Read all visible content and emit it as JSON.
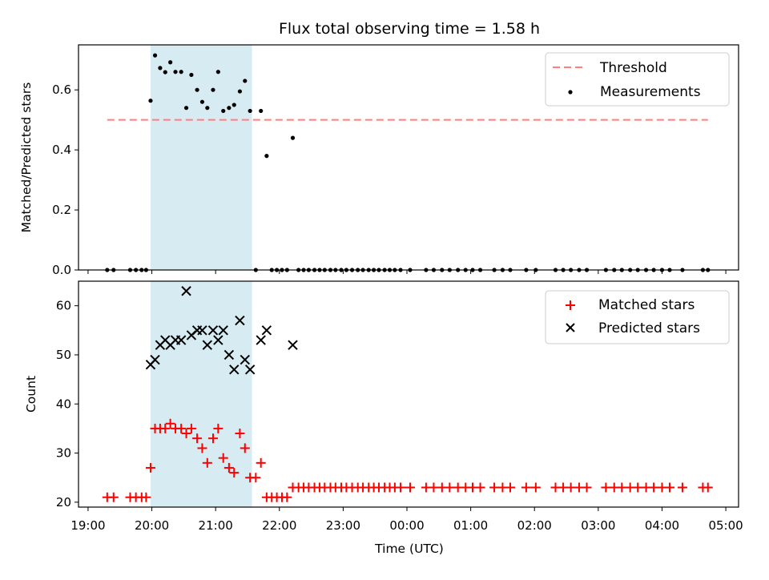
{
  "chart_data": [
    {
      "type": "scatter",
      "panel": "top",
      "title": "Flux total observing time = 1.58 h",
      "xlabel": "",
      "ylabel": "Matched/Predicted stars",
      "xlim": [
        18.85,
        29.2
      ],
      "ylim": [
        0,
        0.75
      ],
      "x_tick_values": [
        19,
        20,
        21,
        22,
        23,
        24,
        25,
        26,
        27,
        28,
        29
      ],
      "y_ticks": [
        0.0,
        0.2,
        0.4,
        0.6
      ],
      "y_tick_labels": [
        "0.0",
        "0.2",
        "0.4",
        "0.6"
      ],
      "shaded_interval": [
        19.98,
        21.57
      ],
      "threshold": {
        "label": "Threshold",
        "value": 0.5,
        "x_start": 19.3,
        "x_end": 28.72,
        "color": "#ff7f7f"
      },
      "legend": {
        "position": "top-right",
        "entries": [
          "Threshold",
          "Measurements"
        ]
      },
      "measurements": {
        "name": "Measurements",
        "color": "#000000",
        "x": [
          19.3,
          19.4,
          19.66,
          19.75,
          19.84,
          19.91,
          19.98,
          20.05,
          20.13,
          20.21,
          20.29,
          20.37,
          20.46,
          20.54,
          20.62,
          20.71,
          20.79,
          20.87,
          20.96,
          21.04,
          21.12,
          21.21,
          21.29,
          21.38,
          21.46,
          21.54,
          21.63,
          21.71,
          21.8,
          21.88,
          21.96,
          22.04,
          22.12,
          22.21,
          22.3,
          22.38,
          22.46,
          22.55,
          22.63,
          22.71,
          22.8,
          22.88,
          22.97,
          23.05,
          23.14,
          23.23,
          23.31,
          23.4,
          23.48,
          23.56,
          23.65,
          23.73,
          23.81,
          23.9,
          24.05,
          24.3,
          24.42,
          24.55,
          24.67,
          24.8,
          24.92,
          25.03,
          25.15,
          25.37,
          25.5,
          25.62,
          25.87,
          26.02,
          26.33,
          26.45,
          26.57,
          26.7,
          26.82,
          27.12,
          27.25,
          27.37,
          27.5,
          27.62,
          27.75,
          27.87,
          28.0,
          28.12,
          28.32,
          28.64,
          28.72
        ],
        "y": [
          0,
          0,
          0,
          0,
          0,
          0,
          0.564,
          0.715,
          0.673,
          0.659,
          0.692,
          0.66,
          0.66,
          0.54,
          0.65,
          0.6,
          0.56,
          0.54,
          0.6,
          0.66,
          0.53,
          0.54,
          0.55,
          0.595,
          0.63,
          0.53,
          0,
          0.53,
          0.38,
          0,
          0,
          0,
          0,
          0.44,
          0,
          0,
          0,
          0,
          0,
          0,
          0,
          0,
          0,
          0,
          0,
          0,
          0,
          0,
          0,
          0,
          0,
          0,
          0,
          0,
          0,
          0,
          0,
          0,
          0,
          0,
          0,
          0,
          0,
          0,
          0,
          0,
          0,
          0,
          0,
          0,
          0,
          0,
          0,
          0,
          0,
          0,
          0,
          0,
          0,
          0,
          0,
          0,
          0,
          0,
          0
        ]
      }
    },
    {
      "type": "scatter",
      "panel": "bottom",
      "title": "",
      "xlabel": "Time (UTC)",
      "ylabel": "Count",
      "xlim": [
        18.85,
        29.2
      ],
      "ylim": [
        19,
        65
      ],
      "x_tick_values": [
        19,
        20,
        21,
        22,
        23,
        24,
        25,
        26,
        27,
        28,
        29
      ],
      "x_tick_labels": [
        "19:00",
        "20:00",
        "21:00",
        "22:00",
        "23:00",
        "00:00",
        "01:00",
        "02:00",
        "03:00",
        "04:00",
        "05:00"
      ],
      "y_ticks": [
        20,
        30,
        40,
        50,
        60
      ],
      "y_tick_labels": [
        "20",
        "30",
        "40",
        "50",
        "60"
      ],
      "shaded_interval": [
        19.98,
        21.57
      ],
      "legend": {
        "position": "top-right",
        "entries": [
          "Matched stars",
          "Predicted stars"
        ]
      },
      "series": [
        {
          "name": "Matched stars",
          "marker": "+",
          "color": "#ff0000",
          "x": [
            19.3,
            19.4,
            19.66,
            19.75,
            19.84,
            19.91,
            19.98,
            20.05,
            20.13,
            20.21,
            20.29,
            20.37,
            20.46,
            20.54,
            20.62,
            20.71,
            20.79,
            20.87,
            20.96,
            21.04,
            21.12,
            21.21,
            21.29,
            21.38,
            21.46,
            21.54,
            21.63,
            21.71,
            21.8,
            21.88,
            21.96,
            22.04,
            22.12,
            22.21,
            22.3,
            22.38,
            22.46,
            22.55,
            22.63,
            22.71,
            22.8,
            22.88,
            22.97,
            23.05,
            23.14,
            23.23,
            23.31,
            23.4,
            23.48,
            23.56,
            23.65,
            23.73,
            23.81,
            23.9,
            24.05,
            24.3,
            24.42,
            24.55,
            24.67,
            24.8,
            24.92,
            25.03,
            25.15,
            25.37,
            25.5,
            25.62,
            25.87,
            26.02,
            26.33,
            26.45,
            26.57,
            26.7,
            26.82,
            27.12,
            27.25,
            27.37,
            27.5,
            27.62,
            27.75,
            27.87,
            28.0,
            28.12,
            28.32,
            28.64,
            28.72
          ],
          "y": [
            21,
            21,
            21,
            21,
            21,
            21,
            27,
            35,
            35,
            35,
            36,
            35,
            35,
            34,
            35,
            33,
            31,
            28,
            33,
            35,
            29,
            27,
            26,
            34,
            31,
            25,
            25,
            28,
            21,
            21,
            21,
            21,
            21,
            23,
            23,
            23,
            23,
            23,
            23,
            23,
            23,
            23,
            23,
            23,
            23,
            23,
            23,
            23,
            23,
            23,
            23,
            23,
            23,
            23,
            23,
            23,
            23,
            23,
            23,
            23,
            23,
            23,
            23,
            23,
            23,
            23,
            23,
            23,
            23,
            23,
            23,
            23,
            23,
            23,
            23,
            23,
            23,
            23,
            23,
            23,
            23,
            23,
            23,
            23,
            23
          ]
        },
        {
          "name": "Predicted stars",
          "marker": "x",
          "color": "#000000",
          "x": [
            19.98,
            20.05,
            20.13,
            20.21,
            20.29,
            20.37,
            20.46,
            20.54,
            20.62,
            20.71,
            20.79,
            20.87,
            20.96,
            21.04,
            21.12,
            21.21,
            21.29,
            21.38,
            21.46,
            21.54,
            21.71,
            21.8,
            22.21
          ],
          "y": [
            48,
            49,
            52,
            53,
            52,
            53,
            53,
            63,
            54,
            55,
            55,
            52,
            55,
            53,
            55,
            50,
            47,
            57,
            49,
            47,
            53,
            55,
            52
          ]
        }
      ]
    }
  ]
}
